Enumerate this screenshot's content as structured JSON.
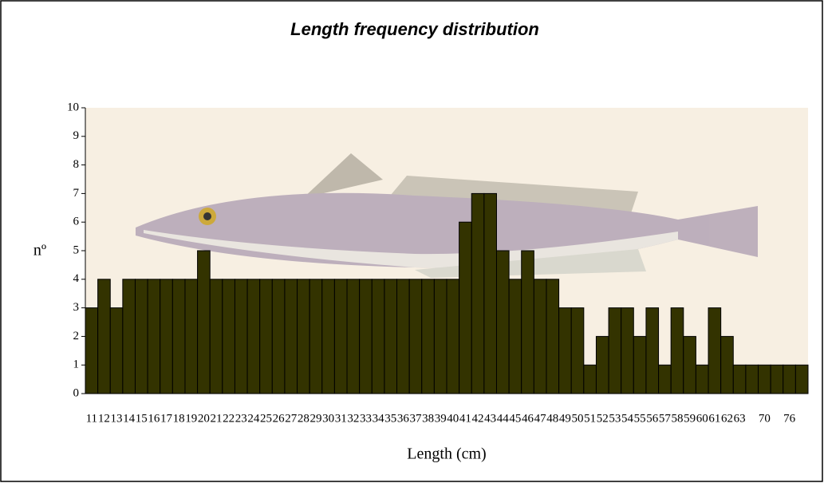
{
  "chart_data": {
    "type": "bar",
    "title": "Length frequency distribution",
    "x_label": "Length (cm)",
    "y_label": "nº",
    "categories": [
      "11",
      "12",
      "13",
      "14",
      "15",
      "16",
      "17",
      "18",
      "19",
      "20",
      "21",
      "22",
      "23",
      "24",
      "25",
      "26",
      "27",
      "28",
      "29",
      "30",
      "31",
      "32",
      "33",
      "34",
      "35",
      "36",
      "37",
      "38",
      "39",
      "40",
      "41",
      "42",
      "43",
      "44",
      "45",
      "46",
      "47",
      "48",
      "49",
      "50",
      "51",
      "52",
      "53",
      "54",
      "55",
      "56",
      "57",
      "58",
      "59",
      "60",
      "61",
      "62",
      "63",
      null,
      "70",
      null,
      "76",
      null
    ],
    "values": [
      3,
      4,
      3,
      4,
      4,
      4,
      4,
      4,
      4,
      5,
      4,
      4,
      4,
      4,
      4,
      4,
      4,
      4,
      4,
      4,
      4,
      4,
      4,
      4,
      4,
      4,
      4,
      4,
      4,
      4,
      6,
      7,
      7,
      5,
      4,
      5,
      4,
      4,
      3,
      3,
      1,
      2,
      3,
      3,
      2,
      3,
      1,
      3,
      2,
      1,
      3,
      2,
      1,
      1,
      1,
      1,
      1,
      1
    ],
    "color": "#333300",
    "ylim": [
      0,
      10
    ],
    "yticks": [
      0,
      1,
      2,
      3,
      4,
      5,
      6,
      7,
      8,
      9,
      10
    ]
  }
}
